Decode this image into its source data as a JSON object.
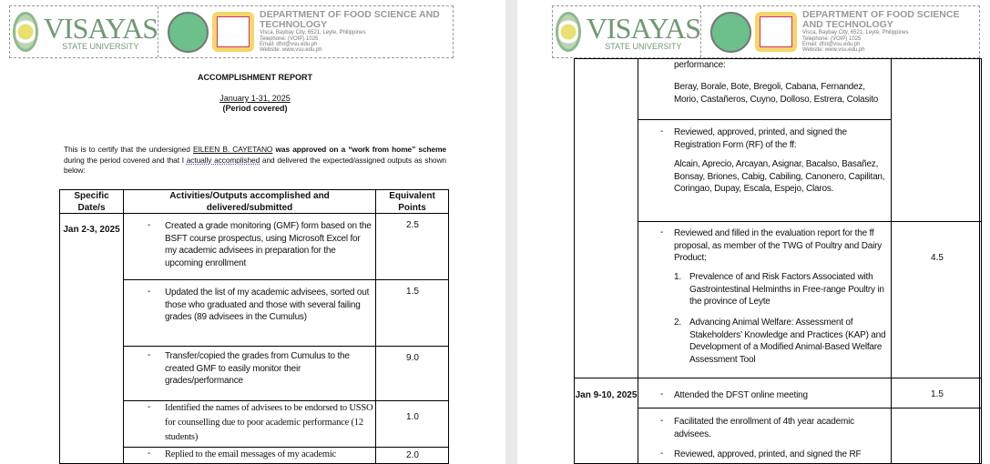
{
  "header": {
    "university": "VISAYAS",
    "university_sub": "STATE UNIVERSITY",
    "department": "DEPARTMENT OF FOOD SCIENCE AND TECHNOLOGY",
    "address": "Visca, Baybay City, 6521, Leyte, Philippines",
    "telephone": "Telephone: (VOIP) 1025",
    "email": "Email: dfst@vsu.edu.ph",
    "website": "Website: www.vsu.edu.ph"
  },
  "report": {
    "title": "ACCOMPLISHMENT REPORT",
    "period": "January 1-31, 2025",
    "period_label": "(Period covered)",
    "cert_1": "This is to certify that the undersigned ",
    "name": "EILEEN B. CAYETANO",
    "cert_2": "was approved on a “work from home” scheme",
    "cert_3": " during the period covered and that I ",
    "cert_4": "actually accomplished",
    "cert_5": " and delivered the expected/assigned outputs as shown below:"
  },
  "table": {
    "headers": [
      "Specific Date/s",
      "Activities/Outputs accomplished and delivered/submitted",
      "Equivalent Points"
    ],
    "page1": {
      "date": "Jan 2-3, 2025",
      "rows": [
        {
          "text": "Created a grade monitoring (GMF) form  based on the BSFT course prospectus, using Microsoft Excel for my academic advisees in preparation for the upcoming enrollment",
          "points": "2.5"
        },
        {
          "text": "Updated the list of my academic advisees, sorted out those who graduated and those with several failing grades (89 advisees in the Cumulus)",
          "points": "1.5"
        },
        {
          "text": "Transfer/copied the grades from Cumulus to the created GMF to easily monitor their grades/performance",
          "points": "9.0"
        },
        {
          "text": "Identified the names of advisees to be endorsed to USSO for counselling due to poor academic performance (12 students)",
          "points": "1.0"
        },
        {
          "text": "Replied to the email messages of my academic",
          "points": "2.0"
        }
      ]
    },
    "page2": {
      "cont_text": "performance:",
      "cont_names": "Beray, Borale, Bote, Bregoli, Cabana, Fernandez, Morio, Castañeros, Cuyno, Dolloso, Estrera, Colasito",
      "rf_text": "Reviewed, approved, printed, and signed the Registration Form (RF) of the ff:",
      "rf_names": "Alcain, Aprecio, Arcayan, Asignar, Bacalso, Basañez, Bonsay, Briones, Cabig, Cabiling, Canonero, Capilitan, Coringao, Dupay, Escala, Espejo, Claros.",
      "eval_text": "Reviewed and filled in the evaluation report for the ff proposal, as member of the TWG of Poultry and Dairy Product:",
      "eval_points": "4.5",
      "eval_items": [
        "Prevalence of and Risk Factors Associated with Gastrointestinal Helminths in Free-range Poultry in the province of Leyte",
        "Advancing Animal Welfare: Assessment of Stakeholders’ Knowledge and Practices (KAP) and Development of a Modified Animal-Based Welfare Assessment Tool"
      ],
      "date2": "Jan 9-10, 2025",
      "meeting": "Attended the DFST online meeting",
      "meeting_points": "1.5",
      "enroll": "Facilitated the enrollment of 4th year academic advisees.",
      "rf2": "Reviewed, approved, printed, and signed the RF"
    }
  }
}
